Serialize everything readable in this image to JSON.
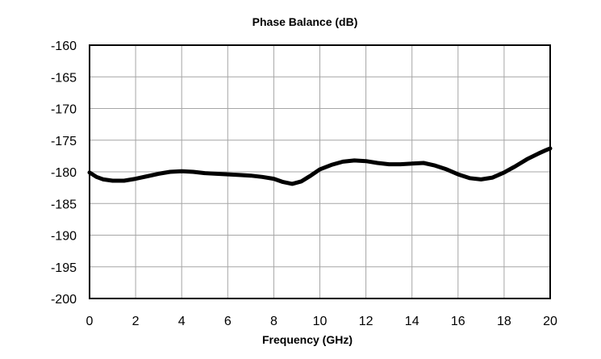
{
  "chart_data": {
    "type": "line",
    "title": "Phase Balance (dB)",
    "xlabel": "Frequency (GHz)",
    "ylabel": "",
    "xlim": [
      0,
      20
    ],
    "ylim": [
      -200,
      -160
    ],
    "x_ticks": [
      "0",
      "2",
      "4",
      "6",
      "8",
      "10",
      "12",
      "14",
      "16",
      "18",
      "20"
    ],
    "y_ticks": [
      "-160",
      "-165",
      "-170",
      "-175",
      "-180",
      "-185",
      "-190",
      "-195",
      "-200"
    ],
    "grid": true,
    "series_color": "#000000",
    "series": [
      {
        "x": [
          0,
          0.3,
          0.6,
          1,
          1.5,
          2,
          2.5,
          3,
          3.5,
          4,
          4.5,
          5,
          5.5,
          6,
          6.5,
          7,
          7.5,
          8,
          8.4,
          8.8,
          9.2,
          9.6,
          10,
          10.5,
          11,
          11.5,
          12,
          12.5,
          13,
          13.5,
          14,
          14.5,
          15,
          15.5,
          16,
          16.5,
          17,
          17.5,
          18,
          18.5,
          19,
          19.5,
          19.8,
          20
        ],
        "y": [
          -180.1,
          -180.8,
          -181.2,
          -181.4,
          -181.4,
          -181.1,
          -180.7,
          -180.3,
          -180.0,
          -179.9,
          -180.0,
          -180.2,
          -180.3,
          -180.4,
          -180.5,
          -180.6,
          -180.8,
          -181.1,
          -181.6,
          -181.9,
          -181.5,
          -180.6,
          -179.6,
          -178.9,
          -178.4,
          -178.2,
          -178.3,
          -178.6,
          -178.8,
          -178.8,
          -178.7,
          -178.6,
          -179.0,
          -179.6,
          -180.4,
          -181.0,
          -181.2,
          -180.9,
          -180.1,
          -179.1,
          -178.0,
          -177.1,
          -176.6,
          -176.3
        ]
      }
    ]
  }
}
